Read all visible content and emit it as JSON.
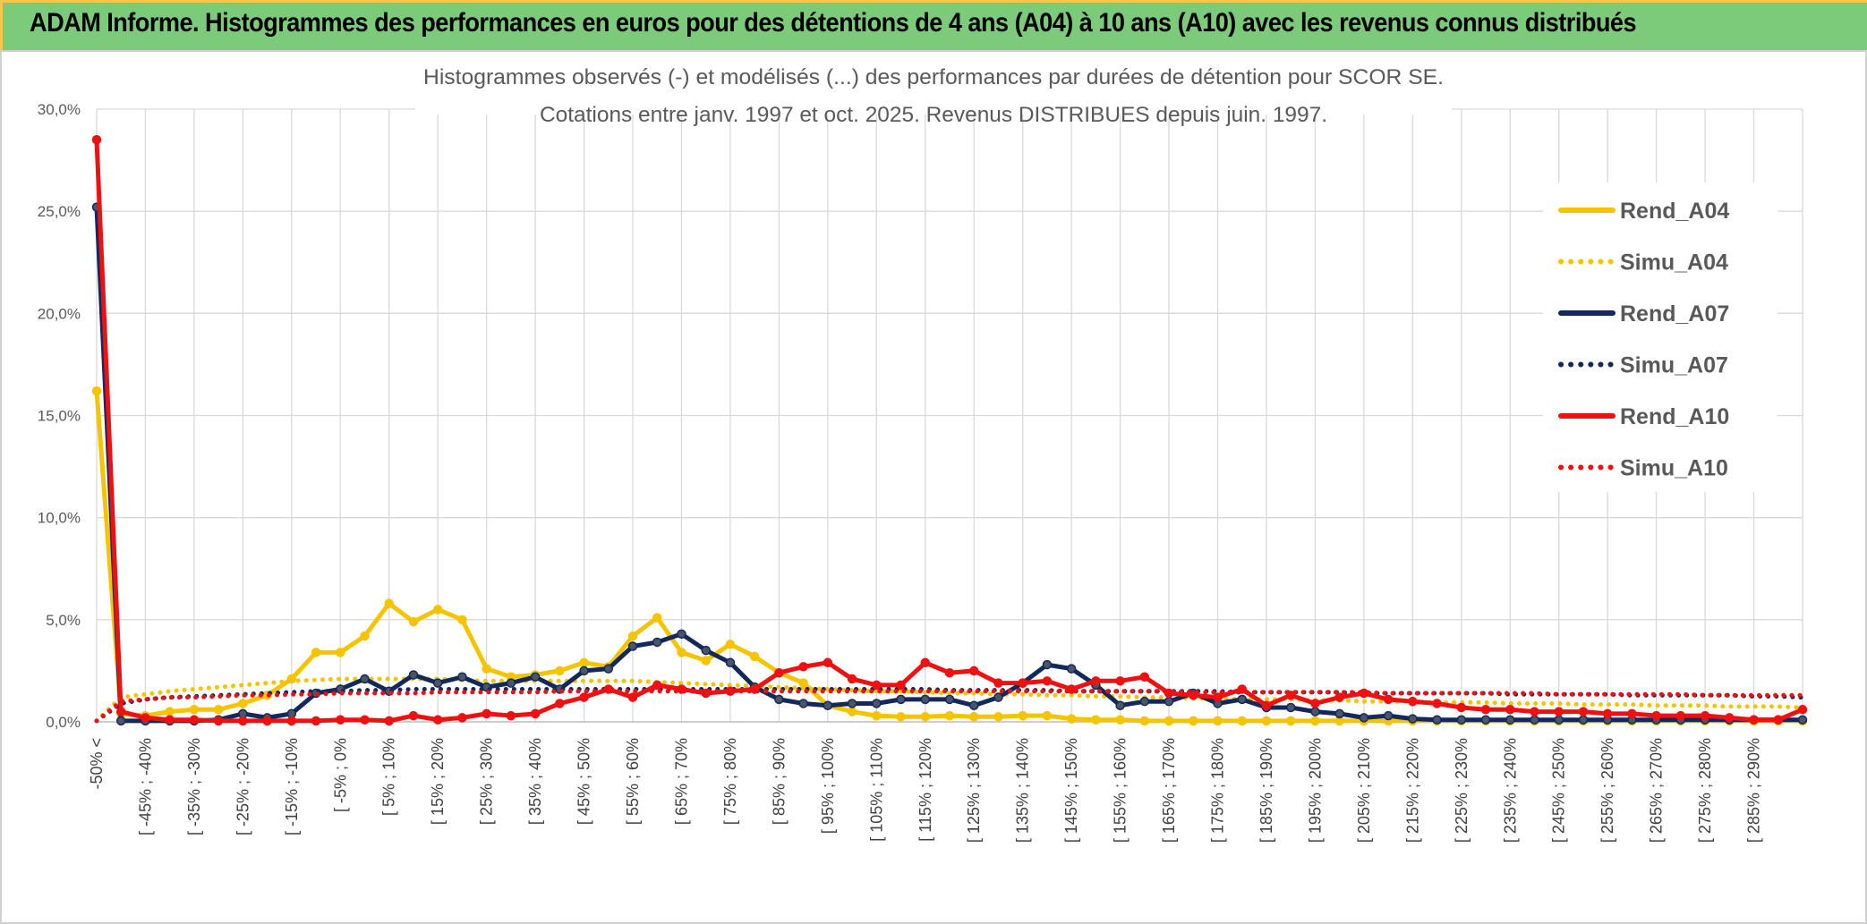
{
  "header": {
    "title": "ADAM Informe. Histogrammes des performances en euros pour des détentions de 4 ans (A04) à 10 ans (A10) avec les revenus connus distribués"
  },
  "chart_data": {
    "type": "line",
    "title": "Histogrammes observés (-) et modélisés (...) des performances par durées de détention pour SCOR SE.",
    "subtitle": "Cotations entre janv. 1997 et oct. 2025. Revenus DISTRIBUES depuis juin. 1997.",
    "xlabel": "",
    "ylabel": "",
    "ylim": [
      0,
      30
    ],
    "yticks": [
      "0,0%",
      "5,0%",
      "10,0%",
      "15,0%",
      "20,0%",
      "25,0%",
      "30,0%"
    ],
    "grid": true,
    "legend_position": "right",
    "categories": [
      "-50% <",
      "[ -50% ; -45%",
      "[ -45% ; -40%",
      "[ -40% ; -35%",
      "[ -35% ; -30%",
      "[ -30% ; -25%",
      "[ -25% ; -20%",
      "[ -20% ; -15%",
      "[ -15% ; -10%",
      "[ -10% ; -5%",
      "[ -5% ; 0%",
      "[ 0% ; 5%",
      "[ 5% ; 10%",
      "[ 10% ; 15%",
      "[ 15% ; 20%",
      "[ 20% ; 25%",
      "[ 25% ; 30%",
      "[ 30% ; 35%",
      "[ 35% ; 40%",
      "[ 40% ; 45%",
      "[ 45% ; 50%",
      "[ 50% ; 55%",
      "[ 55% ; 60%",
      "[ 60% ; 65%",
      "[ 65% ; 70%",
      "[ 70% ; 75%",
      "[ 75% ; 80%",
      "[ 80% ; 85%",
      "[ 85% ; 90%",
      "[ 90% ; 95%",
      "[ 95% ; 100%",
      "[ 100% ; 105%",
      "[ 105% ; 110%",
      "[ 110% ; 115%",
      "[ 115% ; 120%",
      "[ 120% ; 125%",
      "[ 125% ; 130%",
      "[ 130% ; 135%",
      "[ 135% ; 140%",
      "[ 140% ; 145%",
      "[ 145% ; 150%",
      "[ 150% ; 155%",
      "[ 155% ; 160%",
      "[ 160% ; 165%",
      "[ 165% ; 170%",
      "[ 170% ; 175%",
      "[ 175% ; 180%",
      "[ 180% ; 185%",
      "[ 185% ; 190%",
      "[ 190% ; 195%",
      "[ 195% ; 200%",
      "[ 200% ; 205%",
      "[ 205% ; 210%",
      "[ 210% ; 215%",
      "[ 215% ; 220%",
      "[ 220% ; 225%",
      "[ 225% ; 230%",
      "[ 230% ; 235%",
      "[ 235% ; 240%",
      "[ 240% ; 245%",
      "[ 245% ; 250%",
      "[ 250% ; 255%",
      "[ 255% ; 260%",
      "[ 260% ; 265%",
      "[ 265% ; 270%",
      "[ 270% ; 275%",
      "[ 275% ; 280%",
      "[ 280% ; 285%",
      "[ 285% ; 290%",
      "[ 290% ; 295%",
      "[ 295% ; 300%"
    ],
    "visible_tick_labels": [
      "-50% <",
      "[ -45% ; -40%",
      "[ -35% ; -30%",
      "[ -25% ; -20%",
      "[ -15% ; -10%",
      "[ -5% ; 0%",
      "[ 5% ; 10%",
      "[ 15% ; 20%",
      "[ 25% ; 30%",
      "[ 35% ; 40%",
      "[ 45% ; 50%",
      "[ 55% ; 60%",
      "[ 65% ; 70%",
      "[ 75% ; 80%",
      "[ 85% ; 90%",
      "[ 95% ; 100%",
      "[ 105% ; 110%",
      "[ 115% ; 120%",
      "[ 125% ; 130%",
      "[ 135% ; 140%",
      "[ 145% ; 150%",
      "[ 155% ; 160%",
      "[ 165% ; 170%",
      "[ 175% ; 180%",
      "[ 185% ; 190%",
      "[ 195% ; 200%",
      "[ 205% ; 210%",
      "[ 215% ; 220%",
      "[ 225% ; 230%",
      "[ 235% ; 240%",
      "[ 245% ; 250%",
      "[ 255% ; 260%",
      "[ 265% ; 270%",
      "[ 275% ; 280%",
      "[ 285% ; 290%"
    ],
    "series": [
      {
        "name": "Rend_A04",
        "style": "solid",
        "markers": true,
        "color": "#f5c400",
        "values": [
          16.2,
          0.4,
          0.3,
          0.5,
          0.6,
          0.6,
          0.9,
          1.3,
          2.1,
          3.4,
          3.4,
          4.2,
          5.8,
          4.9,
          5.5,
          5.0,
          2.6,
          2.2,
          2.3,
          2.5,
          2.9,
          2.7,
          4.2,
          5.1,
          3.4,
          3.0,
          3.8,
          3.2,
          2.4,
          1.9,
          0.8,
          0.5,
          0.3,
          0.25,
          0.25,
          0.3,
          0.25,
          0.25,
          0.3,
          0.3,
          0.15,
          0.1,
          0.1,
          0.05,
          0.05,
          0.05,
          0.05,
          0.05,
          0.05,
          0.05,
          0.05,
          0.05,
          0.05,
          0.05,
          0.05,
          0.05,
          0.05,
          0.05,
          0.05,
          0.05,
          0.05,
          0.05,
          0.05,
          0.05,
          0.05,
          0.05,
          0.05,
          0.05,
          0.05,
          0.05,
          0.05
        ]
      },
      {
        "name": "Simu_A04",
        "style": "dotted",
        "markers": false,
        "color": "#f5c400",
        "values": [
          0.05,
          1.2,
          1.35,
          1.5,
          1.6,
          1.7,
          1.8,
          1.9,
          2.0,
          2.05,
          2.1,
          2.1,
          2.1,
          2.1,
          2.1,
          2.05,
          2.0,
          2.0,
          2.0,
          2.0,
          2.0,
          2.0,
          2.0,
          1.95,
          1.9,
          1.85,
          1.8,
          1.75,
          1.7,
          1.65,
          1.6,
          1.55,
          1.5,
          1.5,
          1.45,
          1.4,
          1.4,
          1.35,
          1.35,
          1.3,
          1.3,
          1.25,
          1.25,
          1.2,
          1.2,
          1.15,
          1.15,
          1.1,
          1.1,
          1.1,
          1.05,
          1.05,
          1.0,
          1.0,
          1.0,
          0.95,
          0.95,
          0.95,
          0.9,
          0.9,
          0.9,
          0.85,
          0.85,
          0.85,
          0.8,
          0.8,
          0.8,
          0.75,
          0.75,
          0.75,
          0.7
        ]
      },
      {
        "name": "Rend_A07",
        "style": "solid",
        "markers": true,
        "color": "#13295b",
        "values": [
          25.2,
          0.05,
          0.05,
          0.05,
          0.05,
          0.1,
          0.4,
          0.2,
          0.4,
          1.4,
          1.6,
          2.1,
          1.5,
          2.3,
          1.9,
          2.2,
          1.7,
          1.9,
          2.2,
          1.6,
          2.5,
          2.6,
          3.7,
          3.9,
          4.3,
          3.5,
          2.9,
          1.7,
          1.1,
          0.9,
          0.8,
          0.9,
          0.9,
          1.1,
          1.1,
          1.1,
          0.8,
          1.2,
          1.9,
          2.8,
          2.6,
          1.8,
          0.8,
          1.0,
          1.0,
          1.4,
          0.9,
          1.1,
          0.7,
          0.7,
          0.5,
          0.4,
          0.2,
          0.3,
          0.15,
          0.1,
          0.1,
          0.1,
          0.1,
          0.1,
          0.1,
          0.1,
          0.1,
          0.1,
          0.1,
          0.1,
          0.1,
          0.1,
          0.1,
          0.1,
          0.1
        ]
      },
      {
        "name": "Simu_A07",
        "style": "dotted",
        "markers": false,
        "color": "#13295b",
        "values": [
          0.05,
          0.9,
          1.1,
          1.2,
          1.25,
          1.3,
          1.35,
          1.4,
          1.45,
          1.5,
          1.5,
          1.55,
          1.55,
          1.6,
          1.6,
          1.6,
          1.6,
          1.6,
          1.6,
          1.6,
          1.6,
          1.6,
          1.6,
          1.6,
          1.6,
          1.6,
          1.6,
          1.6,
          1.6,
          1.6,
          1.6,
          1.6,
          1.6,
          1.6,
          1.6,
          1.55,
          1.55,
          1.55,
          1.55,
          1.55,
          1.5,
          1.5,
          1.5,
          1.5,
          1.5,
          1.5,
          1.5,
          1.45,
          1.45,
          1.45,
          1.45,
          1.45,
          1.4,
          1.4,
          1.4,
          1.4,
          1.4,
          1.4,
          1.35,
          1.35,
          1.35,
          1.35,
          1.35,
          1.3,
          1.3,
          1.3,
          1.3,
          1.3,
          1.25,
          1.25,
          1.2
        ]
      },
      {
        "name": "Rend_A10",
        "style": "solid",
        "markers": true,
        "color": "#ee1111",
        "values": [
          28.5,
          0.5,
          0.2,
          0.1,
          0.1,
          0.05,
          0.05,
          0.05,
          0.05,
          0.05,
          0.1,
          0.1,
          0.05,
          0.3,
          0.1,
          0.2,
          0.4,
          0.3,
          0.4,
          0.9,
          1.2,
          1.6,
          1.2,
          1.8,
          1.6,
          1.4,
          1.5,
          1.6,
          2.4,
          2.7,
          2.9,
          2.1,
          1.8,
          1.8,
          2.9,
          2.4,
          2.5,
          1.9,
          1.9,
          2.0,
          1.6,
          2.0,
          2.0,
          2.2,
          1.4,
          1.3,
          1.2,
          1.6,
          0.8,
          1.3,
          0.9,
          1.2,
          1.4,
          1.1,
          1.0,
          0.9,
          0.7,
          0.6,
          0.6,
          0.5,
          0.5,
          0.5,
          0.4,
          0.4,
          0.3,
          0.3,
          0.3,
          0.2,
          0.1,
          0.1,
          0.6
        ]
      },
      {
        "name": "Simu_A10",
        "style": "dotted",
        "markers": false,
        "color": "#ee1111",
        "values": [
          0.05,
          1.0,
          1.1,
          1.2,
          1.2,
          1.25,
          1.3,
          1.3,
          1.35,
          1.35,
          1.4,
          1.4,
          1.4,
          1.4,
          1.45,
          1.45,
          1.45,
          1.45,
          1.45,
          1.5,
          1.5,
          1.5,
          1.5,
          1.5,
          1.5,
          1.5,
          1.5,
          1.5,
          1.5,
          1.5,
          1.5,
          1.5,
          1.5,
          1.5,
          1.5,
          1.5,
          1.5,
          1.5,
          1.5,
          1.5,
          1.5,
          1.5,
          1.5,
          1.5,
          1.5,
          1.45,
          1.45,
          1.45,
          1.45,
          1.45,
          1.45,
          1.45,
          1.45,
          1.4,
          1.4,
          1.4,
          1.4,
          1.4,
          1.4,
          1.4,
          1.35,
          1.35,
          1.35,
          1.35,
          1.35,
          1.35,
          1.3,
          1.3,
          1.3,
          1.3,
          1.3
        ]
      }
    ]
  }
}
